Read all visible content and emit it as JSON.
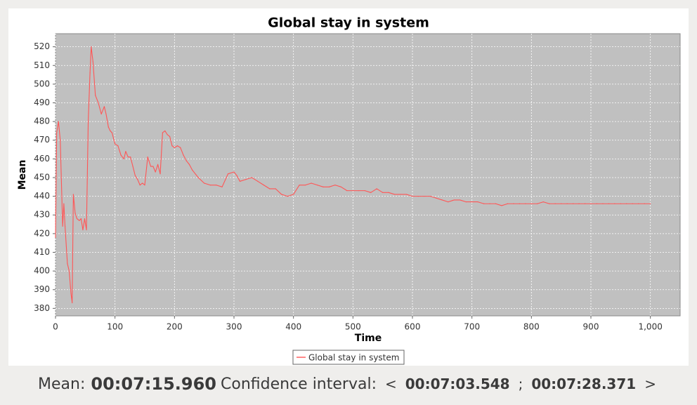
{
  "status": {
    "mean_label": "Mean:",
    "mean_value": "00:07:15.960",
    "ci_label": "Confidence interval:",
    "ci_open": "<",
    "ci_low": "00:07:03.548",
    "ci_sep": ";",
    "ci_high": "00:07:28.371",
    "ci_close": ">"
  },
  "chart_data": {
    "type": "line",
    "title": "Global stay in system",
    "xlabel": "Time",
    "ylabel": "Mean",
    "xlim": [
      0,
      1050
    ],
    "ylim": [
      376,
      527
    ],
    "x_ticks": [
      0,
      100,
      200,
      300,
      400,
      500,
      600,
      700,
      800,
      900,
      1000
    ],
    "x_tick_labels": [
      "0",
      "100",
      "200",
      "300",
      "400",
      "500",
      "600",
      "700",
      "800",
      "900",
      "1,000"
    ],
    "y_ticks": [
      380,
      390,
      400,
      410,
      420,
      430,
      440,
      450,
      460,
      470,
      480,
      490,
      500,
      510,
      520
    ],
    "grid": true,
    "legend": "bottom-center",
    "colors": {
      "series": "#ff5555",
      "plot_bg": "#c0c0c0",
      "grid": "#ffffff"
    },
    "series": [
      {
        "name": "Global stay in system",
        "x": [
          0,
          2,
          5,
          8,
          12,
          14,
          16,
          20,
          23,
          26,
          28,
          30,
          33,
          36,
          40,
          43,
          46,
          49,
          52,
          55,
          58,
          60,
          63,
          67,
          72,
          77,
          82,
          85,
          89,
          92,
          95,
          100,
          105,
          110,
          115,
          118,
          122,
          126,
          130,
          134,
          138,
          142,
          146,
          150,
          155,
          160,
          164,
          168,
          172,
          176,
          180,
          184,
          188,
          192,
          196,
          200,
          205,
          210,
          215,
          220,
          225,
          230,
          240,
          250,
          260,
          270,
          280,
          290,
          300,
          305,
          310,
          320,
          330,
          340,
          350,
          360,
          370,
          380,
          390,
          400,
          410,
          420,
          430,
          440,
          450,
          460,
          470,
          480,
          490,
          500,
          510,
          520,
          530,
          540,
          550,
          560,
          570,
          580,
          590,
          600,
          610,
          620,
          630,
          640,
          650,
          660,
          670,
          680,
          690,
          700,
          710,
          720,
          730,
          740,
          750,
          760,
          770,
          780,
          790,
          800,
          810,
          820,
          830,
          840,
          850,
          860,
          870,
          880,
          890,
          900,
          910,
          920,
          930,
          940,
          950,
          960,
          970,
          980,
          990,
          1000
        ],
        "values": [
          418,
          474,
          480,
          470,
          424,
          436,
          424,
          404,
          400,
          388,
          383,
          441,
          431,
          428,
          427,
          428,
          422,
          428,
          422,
          480,
          506,
          520,
          512,
          494,
          490,
          484,
          488,
          484,
          477,
          475,
          474,
          468,
          467,
          462,
          460,
          464,
          461,
          461,
          456,
          451,
          449,
          446,
          447,
          446,
          461,
          456,
          456,
          453,
          457,
          452,
          474,
          475,
          473,
          472,
          467,
          466,
          467,
          466,
          462,
          459,
          457,
          454,
          450,
          447,
          446,
          446,
          445,
          452,
          453,
          451,
          448,
          449,
          450,
          448,
          446,
          444,
          444,
          441,
          440,
          441,
          446,
          446,
          447,
          446,
          445,
          445,
          446,
          445,
          443,
          443,
          443,
          443,
          442,
          444,
          442,
          442,
          441,
          441,
          441,
          440,
          440,
          440,
          440,
          439,
          438,
          437,
          438,
          438,
          437,
          437,
          437,
          436,
          436,
          436,
          435,
          436,
          436,
          436,
          436,
          436,
          436,
          437,
          436,
          436,
          436,
          436,
          436,
          436,
          436,
          436,
          436,
          436,
          436,
          436,
          436,
          436,
          436,
          436,
          436,
          436
        ]
      }
    ]
  }
}
